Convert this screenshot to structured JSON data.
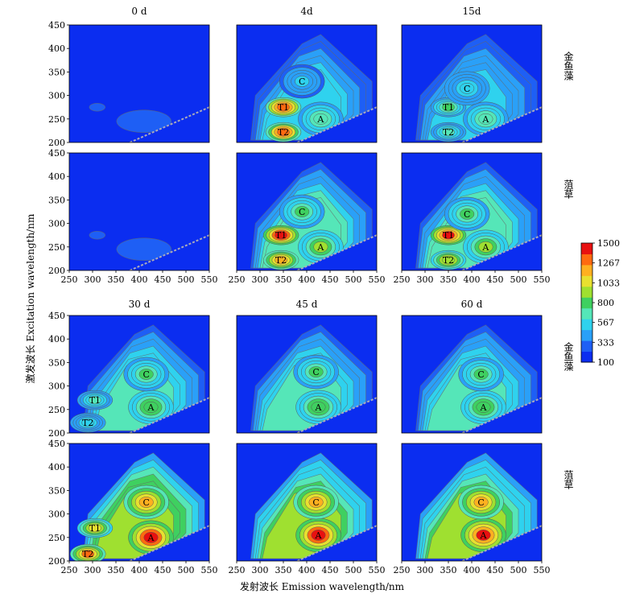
{
  "figure": {
    "y_axis_label": "激发波长  Excitation wavelength/nm",
    "x_axis_label": "发射波长  Emission wavelength/nm",
    "colors": {
      "background": "#0b2df0",
      "scale": [
        "#0b2df0",
        "#1e5ff5",
        "#2aa0f8",
        "#2fd2ee",
        "#55e6b8",
        "#3fd060",
        "#9fe030",
        "#e8e030",
        "#ffb020",
        "#ff6a10",
        "#e81010"
      ]
    }
  },
  "colorbar": {
    "ticks": [
      "1500",
      "1267",
      "1033",
      "800",
      "567",
      "333",
      "100"
    ],
    "min": 100,
    "max": 1500
  },
  "columns": {
    "top": [
      "0 d",
      "4d",
      "15d"
    ],
    "bottom": [
      "30 d",
      "45 d",
      "60 d"
    ]
  },
  "row_labels": [
    "金鱼藻",
    "菹草",
    "金鱼藻",
    "菹草"
  ],
  "axes": {
    "x_ticks": [
      "250",
      "300",
      "350",
      "400",
      "450",
      "500",
      "550"
    ],
    "y_ticks": [
      "450",
      "400",
      "350",
      "300",
      "250",
      "200"
    ]
  },
  "chart_data": [
    {
      "type": "heatmap",
      "title": "0 d",
      "species": "金鱼藻",
      "x_range": [
        250,
        550
      ],
      "y_range": [
        200,
        450
      ],
      "peaks": [],
      "intensity": 0.05
    },
    {
      "type": "heatmap",
      "title": "4d",
      "species": "金鱼藻",
      "x_range": [
        250,
        550
      ],
      "y_range": [
        200,
        450
      ],
      "peaks": [
        {
          "label": "T1",
          "x": 350,
          "y": 275,
          "value": 1400
        },
        {
          "label": "T2",
          "x": 350,
          "y": 222,
          "value": 1350
        },
        {
          "label": "A",
          "x": 430,
          "y": 250,
          "value": 700
        },
        {
          "label": "C",
          "x": 390,
          "y": 330,
          "value": 500
        }
      ],
      "intensity": 0.45
    },
    {
      "type": "heatmap",
      "title": "15d",
      "species": "金鱼藻",
      "x_range": [
        250,
        550
      ],
      "y_range": [
        200,
        450
      ],
      "peaks": [
        {
          "label": "T1",
          "x": 350,
          "y": 275,
          "value": 750
        },
        {
          "label": "T2",
          "x": 350,
          "y": 222,
          "value": 650
        },
        {
          "label": "A",
          "x": 430,
          "y": 250,
          "value": 700
        },
        {
          "label": "C",
          "x": 390,
          "y": 315,
          "value": 550
        }
      ],
      "intensity": 0.4
    },
    {
      "type": "heatmap",
      "title": "0 d",
      "species": "菹草",
      "x_range": [
        250,
        550
      ],
      "y_range": [
        200,
        450
      ],
      "peaks": [],
      "intensity": 0.05
    },
    {
      "type": "heatmap",
      "title": "4d",
      "species": "菹草",
      "x_range": [
        250,
        550
      ],
      "y_range": [
        200,
        450
      ],
      "peaks": [
        {
          "label": "T1",
          "x": 345,
          "y": 275,
          "value": 1480
        },
        {
          "label": "T2",
          "x": 345,
          "y": 222,
          "value": 1200
        },
        {
          "label": "A",
          "x": 430,
          "y": 250,
          "value": 900
        },
        {
          "label": "C",
          "x": 390,
          "y": 325,
          "value": 750
        }
      ],
      "intensity": 0.6
    },
    {
      "type": "heatmap",
      "title": "15d",
      "species": "菹草",
      "x_range": [
        250,
        550
      ],
      "y_range": [
        200,
        450
      ],
      "peaks": [
        {
          "label": "T1",
          "x": 350,
          "y": 275,
          "value": 1450
        },
        {
          "label": "T2",
          "x": 350,
          "y": 222,
          "value": 1000
        },
        {
          "label": "A",
          "x": 430,
          "y": 250,
          "value": 900
        },
        {
          "label": "C",
          "x": 390,
          "y": 320,
          "value": 750
        }
      ],
      "intensity": 0.6
    },
    {
      "type": "heatmap",
      "title": "30 d",
      "species": "金鱼藻",
      "x_range": [
        250,
        550
      ],
      "y_range": [
        200,
        450
      ],
      "peaks": [
        {
          "label": "T1",
          "x": 305,
          "y": 270,
          "value": 600
        },
        {
          "label": "T2",
          "x": 290,
          "y": 222,
          "value": 550
        },
        {
          "label": "A",
          "x": 425,
          "y": 255,
          "value": 850
        },
        {
          "label": "C",
          "x": 415,
          "y": 325,
          "value": 750
        }
      ],
      "intensity": 0.55
    },
    {
      "type": "heatmap",
      "title": "45 d",
      "species": "金鱼藻",
      "x_range": [
        250,
        550
      ],
      "y_range": [
        200,
        450
      ],
      "peaks": [
        {
          "label": "A",
          "x": 425,
          "y": 255,
          "value": 850
        },
        {
          "label": "C",
          "x": 420,
          "y": 330,
          "value": 750
        }
      ],
      "intensity": 0.55
    },
    {
      "type": "heatmap",
      "title": "60 d",
      "species": "金鱼藻",
      "x_range": [
        250,
        550
      ],
      "y_range": [
        200,
        450
      ],
      "peaks": [
        {
          "label": "A",
          "x": 425,
          "y": 255,
          "value": 850
        },
        {
          "label": "C",
          "x": 420,
          "y": 325,
          "value": 750
        }
      ],
      "intensity": 0.55
    },
    {
      "type": "heatmap",
      "title": "30 d",
      "species": "菹草",
      "x_range": [
        250,
        550
      ],
      "y_range": [
        200,
        450
      ],
      "peaks": [
        {
          "label": "T1",
          "x": 305,
          "y": 270,
          "value": 1100
        },
        {
          "label": "T2",
          "x": 290,
          "y": 215,
          "value": 1300
        },
        {
          "label": "A",
          "x": 425,
          "y": 250,
          "value": 1480
        },
        {
          "label": "C",
          "x": 415,
          "y": 325,
          "value": 1250
        }
      ],
      "intensity": 0.9
    },
    {
      "type": "heatmap",
      "title": "45 d",
      "species": "菹草",
      "x_range": [
        250,
        550
      ],
      "y_range": [
        200,
        450
      ],
      "peaks": [
        {
          "label": "A",
          "x": 425,
          "y": 255,
          "value": 1480
        },
        {
          "label": "C",
          "x": 420,
          "y": 325,
          "value": 1250
        }
      ],
      "intensity": 0.85
    },
    {
      "type": "heatmap",
      "title": "60 d",
      "species": "菹草",
      "x_range": [
        250,
        550
      ],
      "y_range": [
        200,
        450
      ],
      "peaks": [
        {
          "label": "A",
          "x": 425,
          "y": 255,
          "value": 1450
        },
        {
          "label": "C",
          "x": 420,
          "y": 325,
          "value": 1250
        }
      ],
      "intensity": 0.85
    }
  ]
}
